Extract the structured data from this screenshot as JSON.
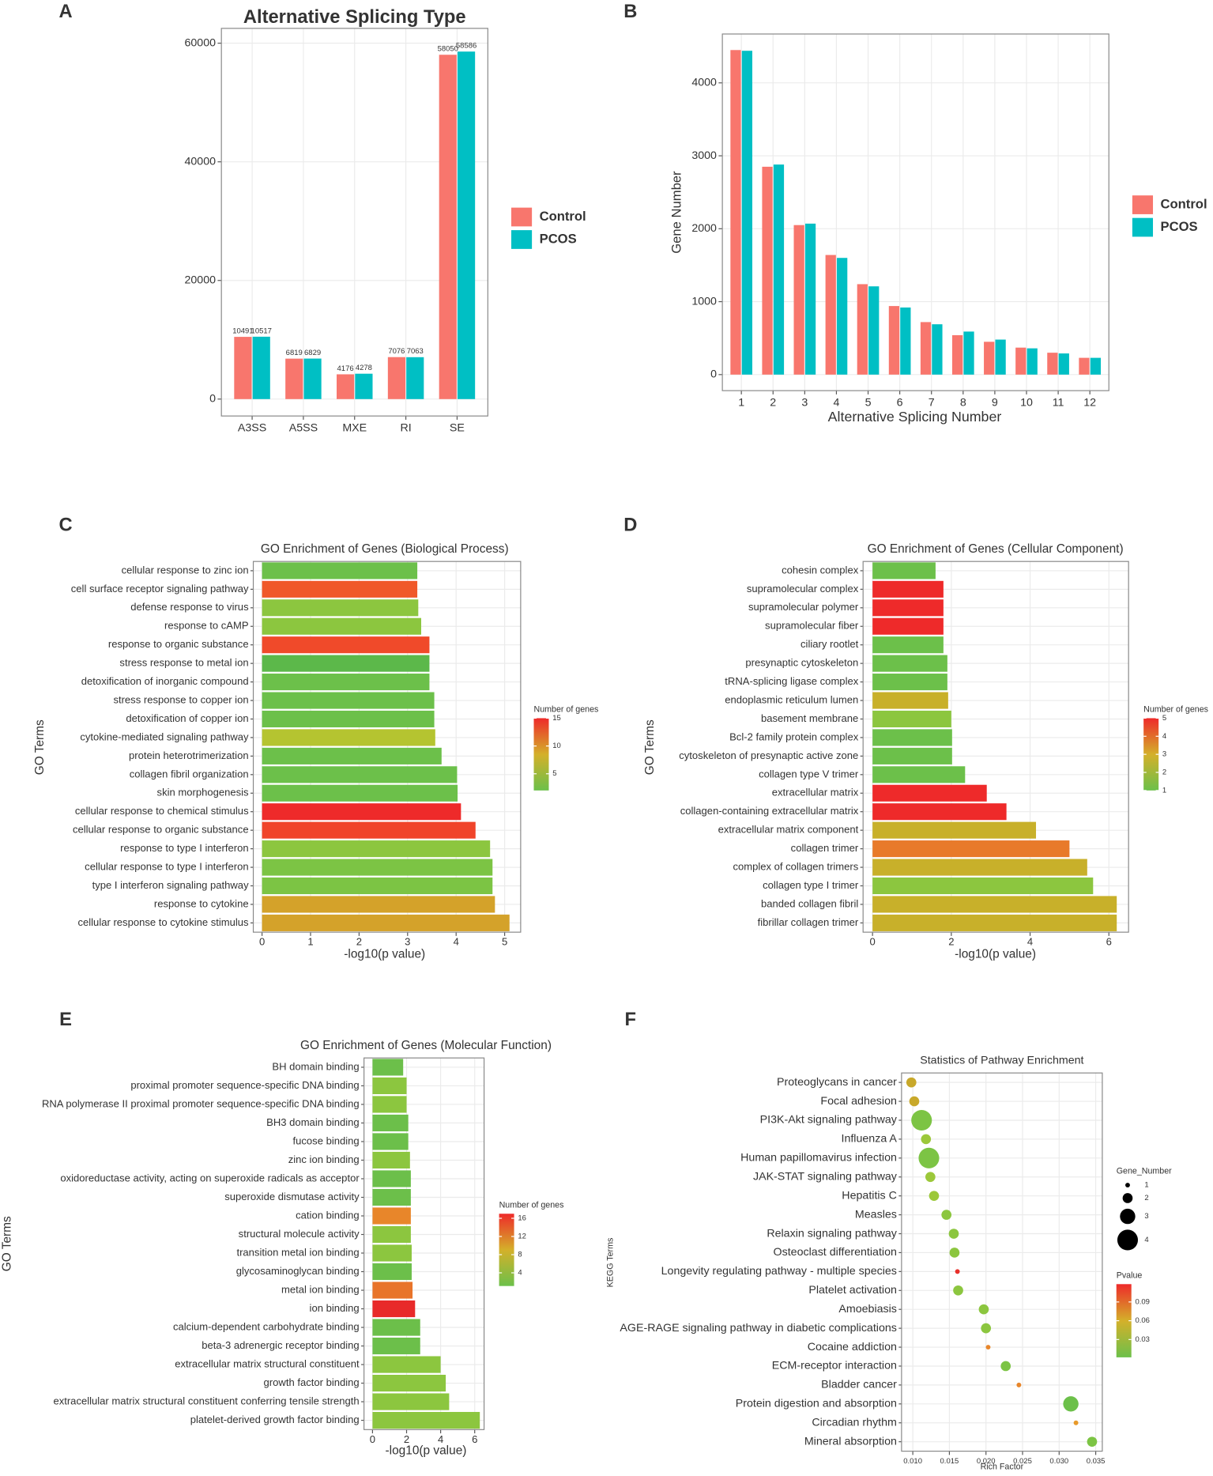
{
  "chart_data": [
    {
      "type": "bar",
      "label": "A",
      "title": "Alternative Splicing Type",
      "categories": [
        "A3SS",
        "A5SS",
        "MXE",
        "RI",
        "SE"
      ],
      "series": [
        {
          "name": "Control",
          "color": "#f8766d",
          "values": [
            10491,
            6819,
            4176,
            7076,
            58050
          ]
        },
        {
          "name": "PCOS",
          "color": "#00bfc4",
          "values": [
            10517,
            6829,
            4278,
            7063,
            58586
          ]
        }
      ],
      "ylim": [
        -2850,
        62500
      ],
      "yticks": [
        0,
        20000,
        40000,
        60000
      ],
      "grid": true,
      "data_labels": true,
      "legend": "right"
    },
    {
      "type": "bar",
      "label": "B",
      "x_label": "Alternative Splicing Number",
      "y_label": "Gene Number",
      "categories": [
        "1",
        "2",
        "3",
        "4",
        "5",
        "6",
        "7",
        "8",
        "9",
        "10",
        "11",
        "12"
      ],
      "series": [
        {
          "name": "Control",
          "color": "#f8766d",
          "values": [
            4450,
            2850,
            2050,
            1640,
            1240,
            940,
            720,
            540,
            450,
            370,
            300,
            230
          ]
        },
        {
          "name": "PCOS",
          "color": "#00bfc4",
          "values": [
            4440,
            2880,
            2070,
            1600,
            1210,
            920,
            690,
            590,
            480,
            360,
            290,
            230
          ]
        }
      ],
      "ylim": [
        -220,
        4670
      ],
      "yticks": [
        0,
        1000,
        2000,
        3000,
        4000
      ],
      "grid": true,
      "data_labels": false,
      "legend": "right"
    },
    {
      "type": "barh",
      "label": "C",
      "title": "GO Enrichment of Genes (Biological Process)",
      "x_label": "-log10(p value)",
      "y_label": "GO Terms",
      "categories": [
        "cellular response to zinc ion",
        "cell surface receptor signaling pathway",
        "defense response to virus",
        "response to cAMP",
        "response to organic substance",
        "stress response to metal ion",
        "detoxification of inorganic compound",
        "stress response to copper ion",
        "detoxification of copper ion",
        "cytokine-mediated signaling pathway",
        "protein heterotrimerization",
        "collagen fibril organization",
        "skin morphogenesis",
        "cellular response to chemical stimulus",
        "cellular response to organic substance",
        "response to type I interferon",
        "cellular response to type I interferon",
        "type I interferon signaling pathway",
        "response to cytokine",
        "cellular response to cytokine stimulus"
      ],
      "values": [
        3.2,
        3.2,
        3.22,
        3.28,
        3.45,
        3.45,
        3.45,
        3.55,
        3.55,
        3.57,
        3.7,
        4.02,
        4.03,
        4.1,
        4.4,
        4.7,
        4.75,
        4.75,
        4.8,
        5.1
      ],
      "colors": [
        "#6cc04a",
        "#f0582a",
        "#8cc63f",
        "#8cc63f",
        "#f04a2a",
        "#5cb84a",
        "#6cc04a",
        "#6cc04a",
        "#6cc04a",
        "#b5c430",
        "#6cc04a",
        "#6cc04a",
        "#6cc04a",
        "#ee2a2a",
        "#f0442a",
        "#8cc63f",
        "#7cc444",
        "#7cc444",
        "#d4a22a",
        "#d4a22a"
      ],
      "xlim": [
        -0.18,
        5.33
      ],
      "xticks": [
        0,
        1,
        2,
        3,
        4,
        5
      ],
      "grid": true,
      "colorbar": {
        "title": "Number of genes",
        "ticks": [
          5,
          10,
          15
        ],
        "lim": [
          2,
          15
        ],
        "colors": [
          "#6cc04a",
          "#d4b02a",
          "#ee2a2a"
        ]
      }
    },
    {
      "type": "barh",
      "label": "D",
      "title": "GO Enrichment of Genes (Cellular Component)",
      "x_label": "-log10(p value)",
      "y_label": "GO Terms",
      "categories": [
        "cohesin complex",
        "supramolecular complex",
        "supramolecular polymer",
        "supramolecular fiber",
        "ciliary rootlet",
        "presynaptic cytoskeleton",
        "tRNA-splicing ligase complex",
        "endoplasmic reticulum lumen",
        "basement membrane",
        "Bcl-2 family protein complex",
        "cytoskeleton of presynaptic active zone",
        "collagen type V trimer",
        "extracellular matrix",
        "collagen-containing extracellular matrix",
        "extracellular matrix component",
        "collagen trimer",
        "complex of collagen trimers",
        "collagen type I trimer",
        "banded collagen fibril",
        "fibrillar collagen trimer"
      ],
      "values": [
        1.6,
        1.8,
        1.8,
        1.8,
        1.8,
        1.9,
        1.9,
        1.92,
        2.0,
        2.02,
        2.02,
        2.35,
        2.9,
        3.4,
        4.15,
        5.0,
        5.45,
        5.6,
        6.2,
        6.2
      ],
      "colors": [
        "#6cc04a",
        "#ee2a2a",
        "#ee2a2a",
        "#ee2a2a",
        "#6cc04a",
        "#6cc04a",
        "#6cc04a",
        "#c8b02a",
        "#8cc63f",
        "#6cc04a",
        "#6cc04a",
        "#6cc04a",
        "#ee2a2a",
        "#ee2a2a",
        "#c8b02a",
        "#e87a2a",
        "#c8b02a",
        "#8cc63f",
        "#c8b02a",
        "#c8b02a"
      ],
      "xlim": [
        -0.24,
        6.5
      ],
      "xticks": [
        0,
        2,
        4,
        6
      ],
      "grid": true,
      "colorbar": {
        "title": "Number of genes",
        "ticks": [
          1,
          2,
          3,
          4,
          5
        ],
        "lim": [
          1,
          5
        ],
        "colors": [
          "#6cc04a",
          "#d4b02a",
          "#ee2a2a"
        ]
      }
    },
    {
      "type": "barh",
      "label": "E",
      "title": "GO Enrichment of Genes (Molecular Function)",
      "x_label": "-log10(p value)",
      "y_label": "GO Terms",
      "categories": [
        "BH domain binding",
        "proximal promoter sequence-specific DNA binding",
        "RNA polymerase II proximal promoter sequence-specific DNA binding",
        "BH3 domain binding",
        "fucose binding",
        "zinc ion binding",
        "oxidoreductase activity, acting on superoxide radicals as acceptor",
        "superoxide dismutase activity",
        "cation binding",
        "structural molecule activity",
        "transition metal ion binding",
        "glycosaminoglycan binding",
        "metal ion binding",
        "ion binding",
        "calcium-dependent carbohydrate binding",
        "beta-3 adrenergic receptor binding",
        "extracellular matrix structural constituent",
        "growth factor binding",
        "extracellular matrix structural constituent conferring tensile strength",
        "platelet-derived growth factor binding"
      ],
      "values": [
        1.8,
        2.0,
        2.0,
        2.1,
        2.1,
        2.2,
        2.25,
        2.25,
        2.25,
        2.25,
        2.3,
        2.3,
        2.35,
        2.5,
        2.8,
        2.8,
        4.0,
        4.3,
        4.5,
        6.3
      ],
      "colors": [
        "#6cbf4a",
        "#8cc63f",
        "#8cc63f",
        "#6cbf4a",
        "#6cbf4a",
        "#8cc63f",
        "#6cbf4a",
        "#6cbf4a",
        "#e8862a",
        "#8cc63f",
        "#8cc63f",
        "#6cbf4a",
        "#e8742a",
        "#e82a2a",
        "#6cbf4a",
        "#6cbf4a",
        "#8cc63f",
        "#8cc63f",
        "#8cc63f",
        "#8cc63f"
      ],
      "xlim": [
        -0.5,
        6.55
      ],
      "xticks": [
        0,
        2,
        4,
        6
      ],
      "grid": true,
      "colorbar": {
        "title": "Number of genes",
        "ticks": [
          4,
          8,
          12,
          16
        ],
        "lim": [
          1.1,
          17
        ],
        "colors": [
          "#6cc04a",
          "#d4b02a",
          "#ee2a2a"
        ]
      }
    },
    {
      "type": "bubble",
      "label": "F",
      "title": "Statistics of Pathway Enrichment",
      "x_label": "Rich Factor",
      "y_label": "KEGG Terms",
      "categories": [
        "Proteoglycans in cancer",
        "Focal adhesion",
        "PI3K-Akt signaling pathway",
        "Influenza A",
        "Human papillomavirus infection",
        "JAK-STAT signaling pathway",
        "Hepatitis C",
        "Measles",
        "Relaxin signaling pathway",
        "Osteoclast differentiation",
        "Longevity regulating pathway - multiple species",
        "Platelet activation",
        "Amoebiasis",
        "AGE-RAGE signaling pathway in diabetic complications",
        "Cocaine addiction",
        "ECM-receptor interaction",
        "Bladder cancer",
        "Protein digestion and absorption",
        "Circadian rhythm",
        "Mineral absorption"
      ],
      "x": [
        0.0098,
        0.0102,
        0.0112,
        0.0118,
        0.0122,
        0.0124,
        0.0129,
        0.0146,
        0.0156,
        0.0157,
        0.0161,
        0.0162,
        0.0197,
        0.02,
        0.0203,
        0.0227,
        0.0245,
        0.0316,
        0.0323,
        0.0345
      ],
      "sizes": [
        2,
        2,
        4,
        2,
        4,
        2,
        2,
        2,
        2,
        2,
        1,
        2,
        2,
        2,
        1,
        2,
        1,
        3,
        1,
        2
      ],
      "colors": [
        "#c8a82a",
        "#c8a82a",
        "#7cc444",
        "#9cc83a",
        "#7cc444",
        "#9cc83a",
        "#9cc83a",
        "#8cc63f",
        "#8cc63f",
        "#8cc63f",
        "#e8302a",
        "#8cc63f",
        "#8cc63f",
        "#8cc63f",
        "#e8862a",
        "#7cc444",
        "#e8862a",
        "#6cc04a",
        "#e89a2a",
        "#7cc444"
      ],
      "xlim": [
        0.00846,
        0.0359
      ],
      "xticks": [
        {
          "value": 0.01,
          "label": "0.010"
        },
        0.015,
        {
          "value": 0.02,
          "label": "0.020"
        },
        0.025,
        {
          "value": 0.03,
          "label": "0.030"
        },
        0.035
      ],
      "grid": true,
      "size_legend": {
        "title": "Gene_Number",
        "values": [
          1,
          2,
          3,
          4
        ]
      },
      "colorbar": {
        "title": "Pvalue",
        "ticks": [
          0.03,
          0.06,
          0.09
        ],
        "lim": [
          0.0015,
          0.1185
        ],
        "colors": [
          "#6cc04a",
          "#d4b02a",
          "#ee2a2a"
        ]
      }
    }
  ]
}
